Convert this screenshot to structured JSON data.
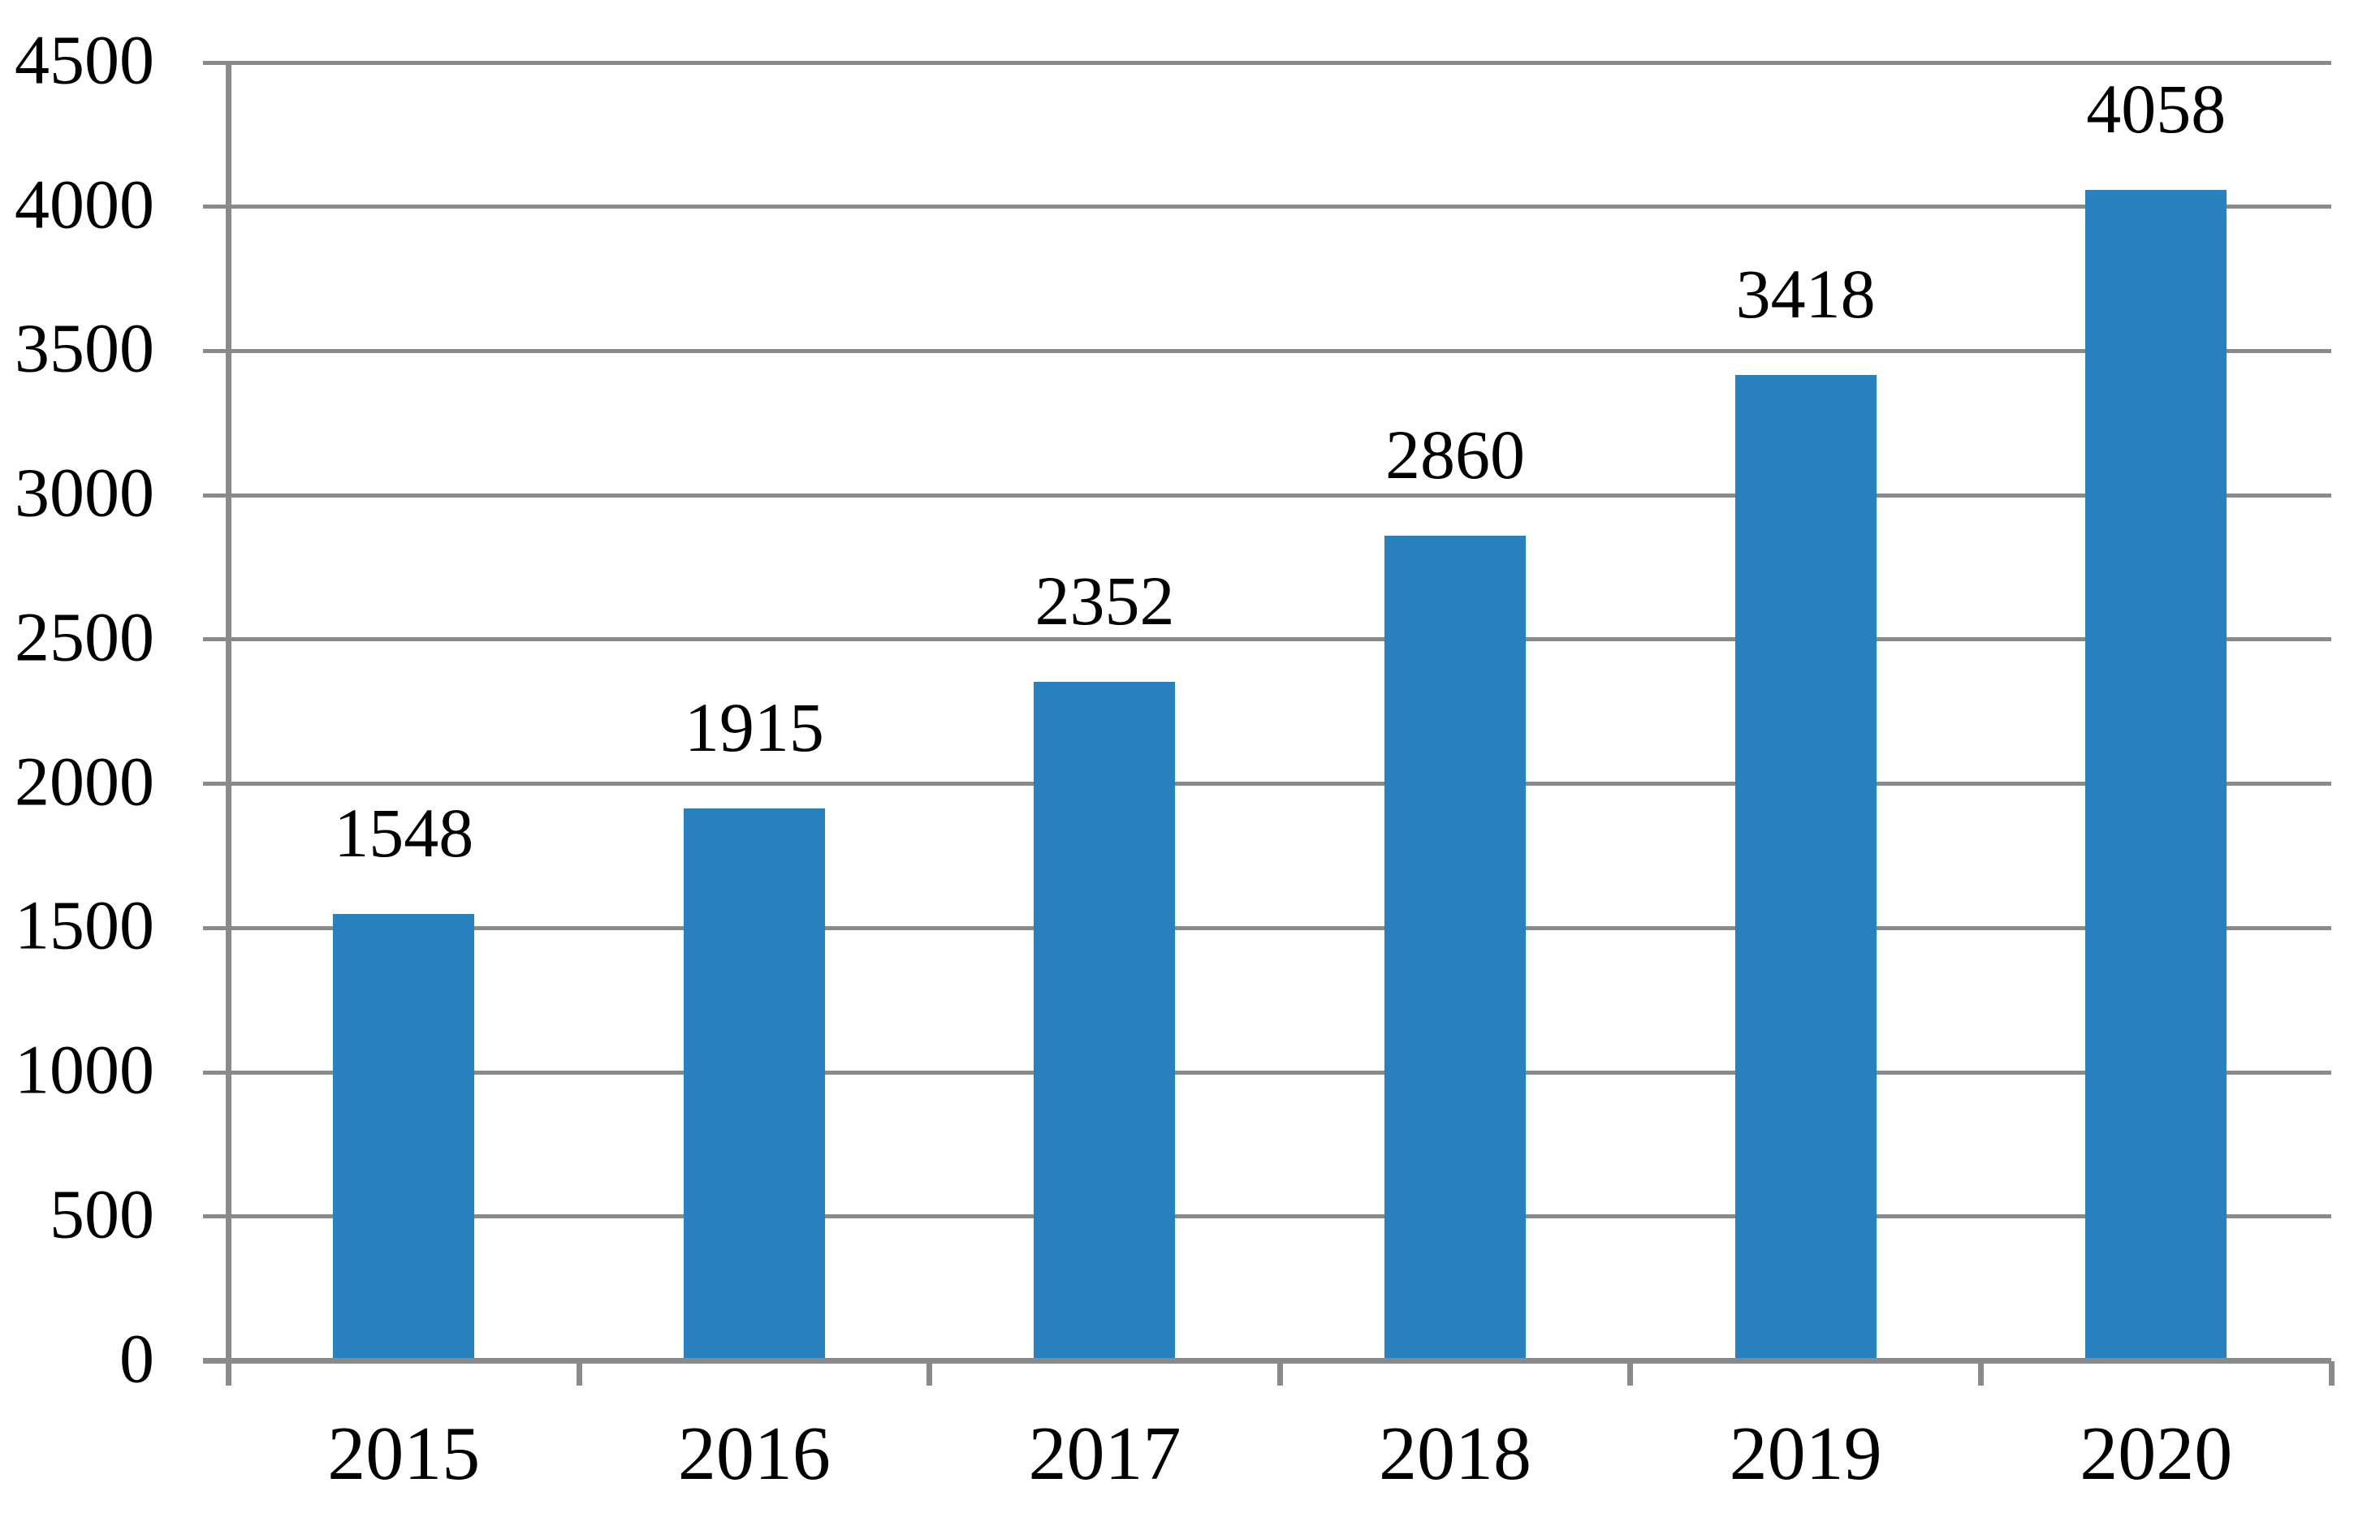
{
  "chart_data": {
    "type": "bar",
    "categories": [
      "2015",
      "2016",
      "2017",
      "2018",
      "2019",
      "2020"
    ],
    "values": [
      1548,
      1915,
      2352,
      2860,
      3418,
      4058
    ],
    "series_count": 1,
    "title": "",
    "xlabel": "",
    "ylabel": "",
    "ylim": [
      0,
      4500
    ],
    "ytick_interval": 500,
    "ytick_labels": [
      "0",
      "500",
      "1000",
      "1500",
      "2000",
      "2500",
      "3000",
      "3500",
      "4000",
      "4500"
    ],
    "grid": "horizontal",
    "legend": "none",
    "data_labels_shown": true,
    "colors": {
      "bar": "#2880BD",
      "axis": "#8A8A8A",
      "gridline": "#8A8A8A",
      "text": "#000000",
      "background": "#FFFFFF"
    }
  }
}
